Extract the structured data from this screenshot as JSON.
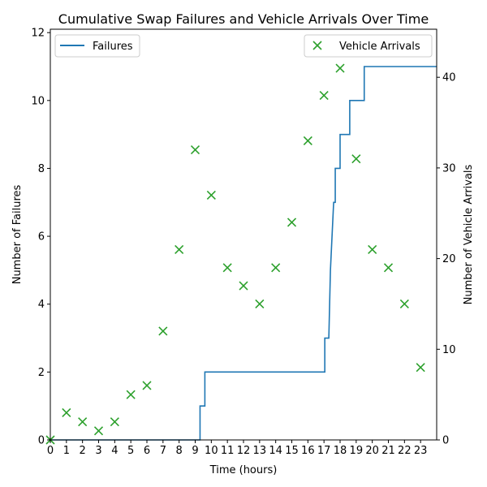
{
  "chart_data": {
    "type": "line+scatter",
    "title": "Cumulative Swap Failures and Vehicle Arrivals Over Time",
    "xlabel": "Time (hours)",
    "ylabel_left": "Number of Failures",
    "ylabel_right": "Number of Vehicle Arrivals",
    "xlim": [
      0,
      24
    ],
    "ylim_left": [
      0,
      12.1
    ],
    "ylim_right": [
      0,
      45.3
    ],
    "x_ticks": [
      0,
      1,
      2,
      3,
      4,
      5,
      6,
      7,
      8,
      9,
      10,
      11,
      12,
      13,
      14,
      15,
      16,
      17,
      18,
      19,
      20,
      21,
      22,
      23
    ],
    "y_ticks_left": [
      0,
      2,
      4,
      6,
      8,
      10,
      12
    ],
    "y_ticks_right": [
      0,
      10,
      20,
      30,
      40
    ],
    "grid": false,
    "legend_left": {
      "placement": "top-left",
      "label": "Failures"
    },
    "legend_right": {
      "placement": "top-right",
      "label": "Vehicle Arrivals"
    },
    "failures_series": {
      "name": "Failures",
      "color": "#1f77b4",
      "style": "step",
      "points": [
        [
          0,
          0
        ],
        [
          9.3,
          0
        ],
        [
          9.3,
          1
        ],
        [
          9.6,
          1
        ],
        [
          9.6,
          2
        ],
        [
          17.05,
          2
        ],
        [
          17.05,
          3
        ],
        [
          17.3,
          3
        ],
        [
          17.4,
          5
        ],
        [
          17.6,
          7
        ],
        [
          17.7,
          7
        ],
        [
          17.7,
          8
        ],
        [
          18.0,
          8
        ],
        [
          18.0,
          9
        ],
        [
          18.6,
          9
        ],
        [
          18.6,
          10
        ],
        [
          19.5,
          10
        ],
        [
          19.5,
          11
        ],
        [
          24,
          11
        ]
      ]
    },
    "arrivals_series": {
      "name": "Vehicle Arrivals",
      "color": "#2ca02c",
      "marker": "x",
      "x": [
        0,
        1,
        2,
        3,
        4,
        5,
        6,
        7,
        8,
        9,
        10,
        11,
        12,
        13,
        14,
        15,
        16,
        17,
        18,
        19,
        20,
        21,
        22,
        23
      ],
      "y": [
        0,
        3,
        2,
        1,
        2,
        5,
        6,
        12,
        21,
        32,
        27,
        19,
        17,
        15,
        19,
        24,
        33,
        38,
        41,
        31,
        21,
        19,
        15,
        8
      ]
    }
  }
}
